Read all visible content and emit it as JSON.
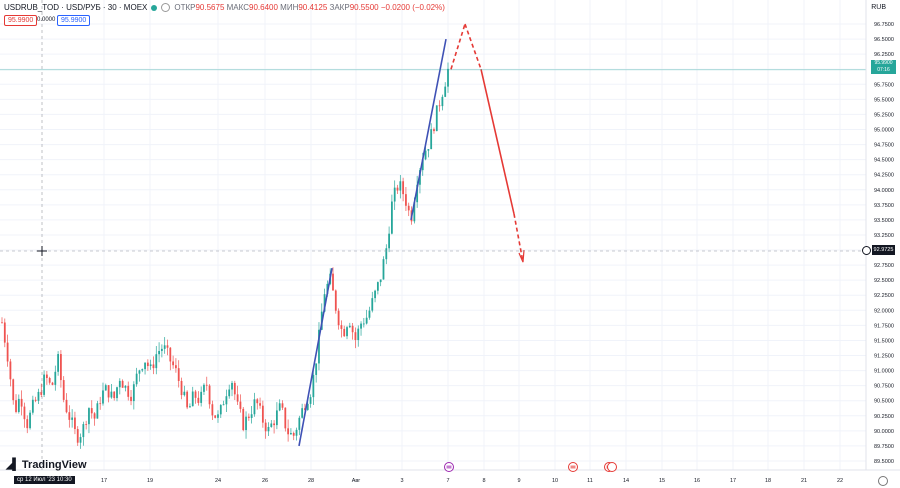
{
  "header": {
    "symbol": "USDRUB_TOD · USD/РУБ · 30 · MOEX",
    "open_label": "ОТКР",
    "open": "90.5675",
    "high_label": "МАКС",
    "high": "90.6400",
    "low_label": "МИН",
    "low": "90.4125",
    "close_label": "ЗАКР",
    "close": "90.5500",
    "change": "−0.0200 (−0.02%)"
  },
  "trade": {
    "sell_price": "95.9900",
    "spread": "0.0000",
    "buy_price": "95.9900"
  },
  "currency": "RUB",
  "last_price_label": "95.9900",
  "last_price_timer": "07:16",
  "crosshair_price": "92.9725",
  "crosshair_date": "ср 12 Июл '23   10:30",
  "logo": "TradingView",
  "colors": {
    "up": "#26a69a",
    "down": "#ef5350",
    "trend": "#3f51b5",
    "forecast": "#e53935"
  },
  "chart_data": {
    "type": "candlestick",
    "price_axis_ticks": [
      "96.7500",
      "96.5000",
      "96.2500",
      "96.0000",
      "95.7500",
      "95.5000",
      "95.2500",
      "95.0000",
      "94.7500",
      "94.5000",
      "94.2500",
      "94.0000",
      "93.7500",
      "93.5000",
      "93.2500",
      "93.0000",
      "92.7500",
      "92.5000",
      "92.2500",
      "92.0000",
      "91.7500",
      "91.5000",
      "91.2500",
      "91.0000",
      "90.7500",
      "90.5000",
      "90.2500",
      "90.0000",
      "89.7500",
      "89.5000"
    ],
    "time_axis_ticks": [
      "17",
      "19",
      "24",
      "26",
      "28",
      "Авг",
      "3",
      "7",
      "8",
      "9",
      "10",
      "11",
      "14",
      "15",
      "16",
      "17",
      "18",
      "21",
      "22"
    ],
    "ylim": [
      89.45,
      96.85
    ],
    "close_path": [
      91.8,
      91.2,
      90.3,
      90.6,
      90.1,
      90.4,
      90.6,
      90.9,
      90.7,
      91.2,
      90.5,
      90.2,
      89.9,
      90.0,
      90.4,
      90.2,
      90.6,
      90.7,
      90.5,
      90.9,
      90.7,
      90.6,
      91.0,
      91.2,
      91.0,
      91.3,
      91.4,
      91.2,
      91.0,
      90.7,
      90.3,
      90.6,
      90.5,
      90.8,
      90.3,
      90.2,
      90.6,
      90.9,
      90.4,
      90.1,
      90.3,
      90.5,
      90.2,
      90.0,
      90.2,
      90.4,
      90.0,
      89.9,
      90.2,
      90.5,
      90.7,
      91.4,
      92.3,
      92.5,
      92.0,
      91.6,
      91.9,
      91.5,
      91.8,
      91.9,
      92.2,
      92.5,
      93.0,
      93.8,
      94.1,
      93.9,
      93.5,
      94.2,
      94.6,
      94.8,
      95.2,
      95.6,
      95.99
    ],
    "candle_count": 160,
    "drawings": [
      {
        "type": "trendline",
        "from": [
          "27 Jul",
          89.75
        ],
        "to": [
          "28 Jul",
          92.7
        ]
      },
      {
        "type": "trendline",
        "from": [
          "3 Aug",
          93.5
        ],
        "to": [
          "7 Aug",
          96.5
        ]
      },
      {
        "type": "forecast",
        "points": [
          [
            "7 Aug",
            96.0
          ],
          [
            "7 Aug",
            96.75
          ],
          [
            "8 Aug",
            96.0
          ],
          [
            "9 Aug",
            93.5
          ],
          [
            "9 Aug",
            92.8
          ]
        ]
      }
    ],
    "events": [
      "lightning-event-icon",
      "us-flag-event-icon",
      "us-flag-event-icon"
    ]
  }
}
